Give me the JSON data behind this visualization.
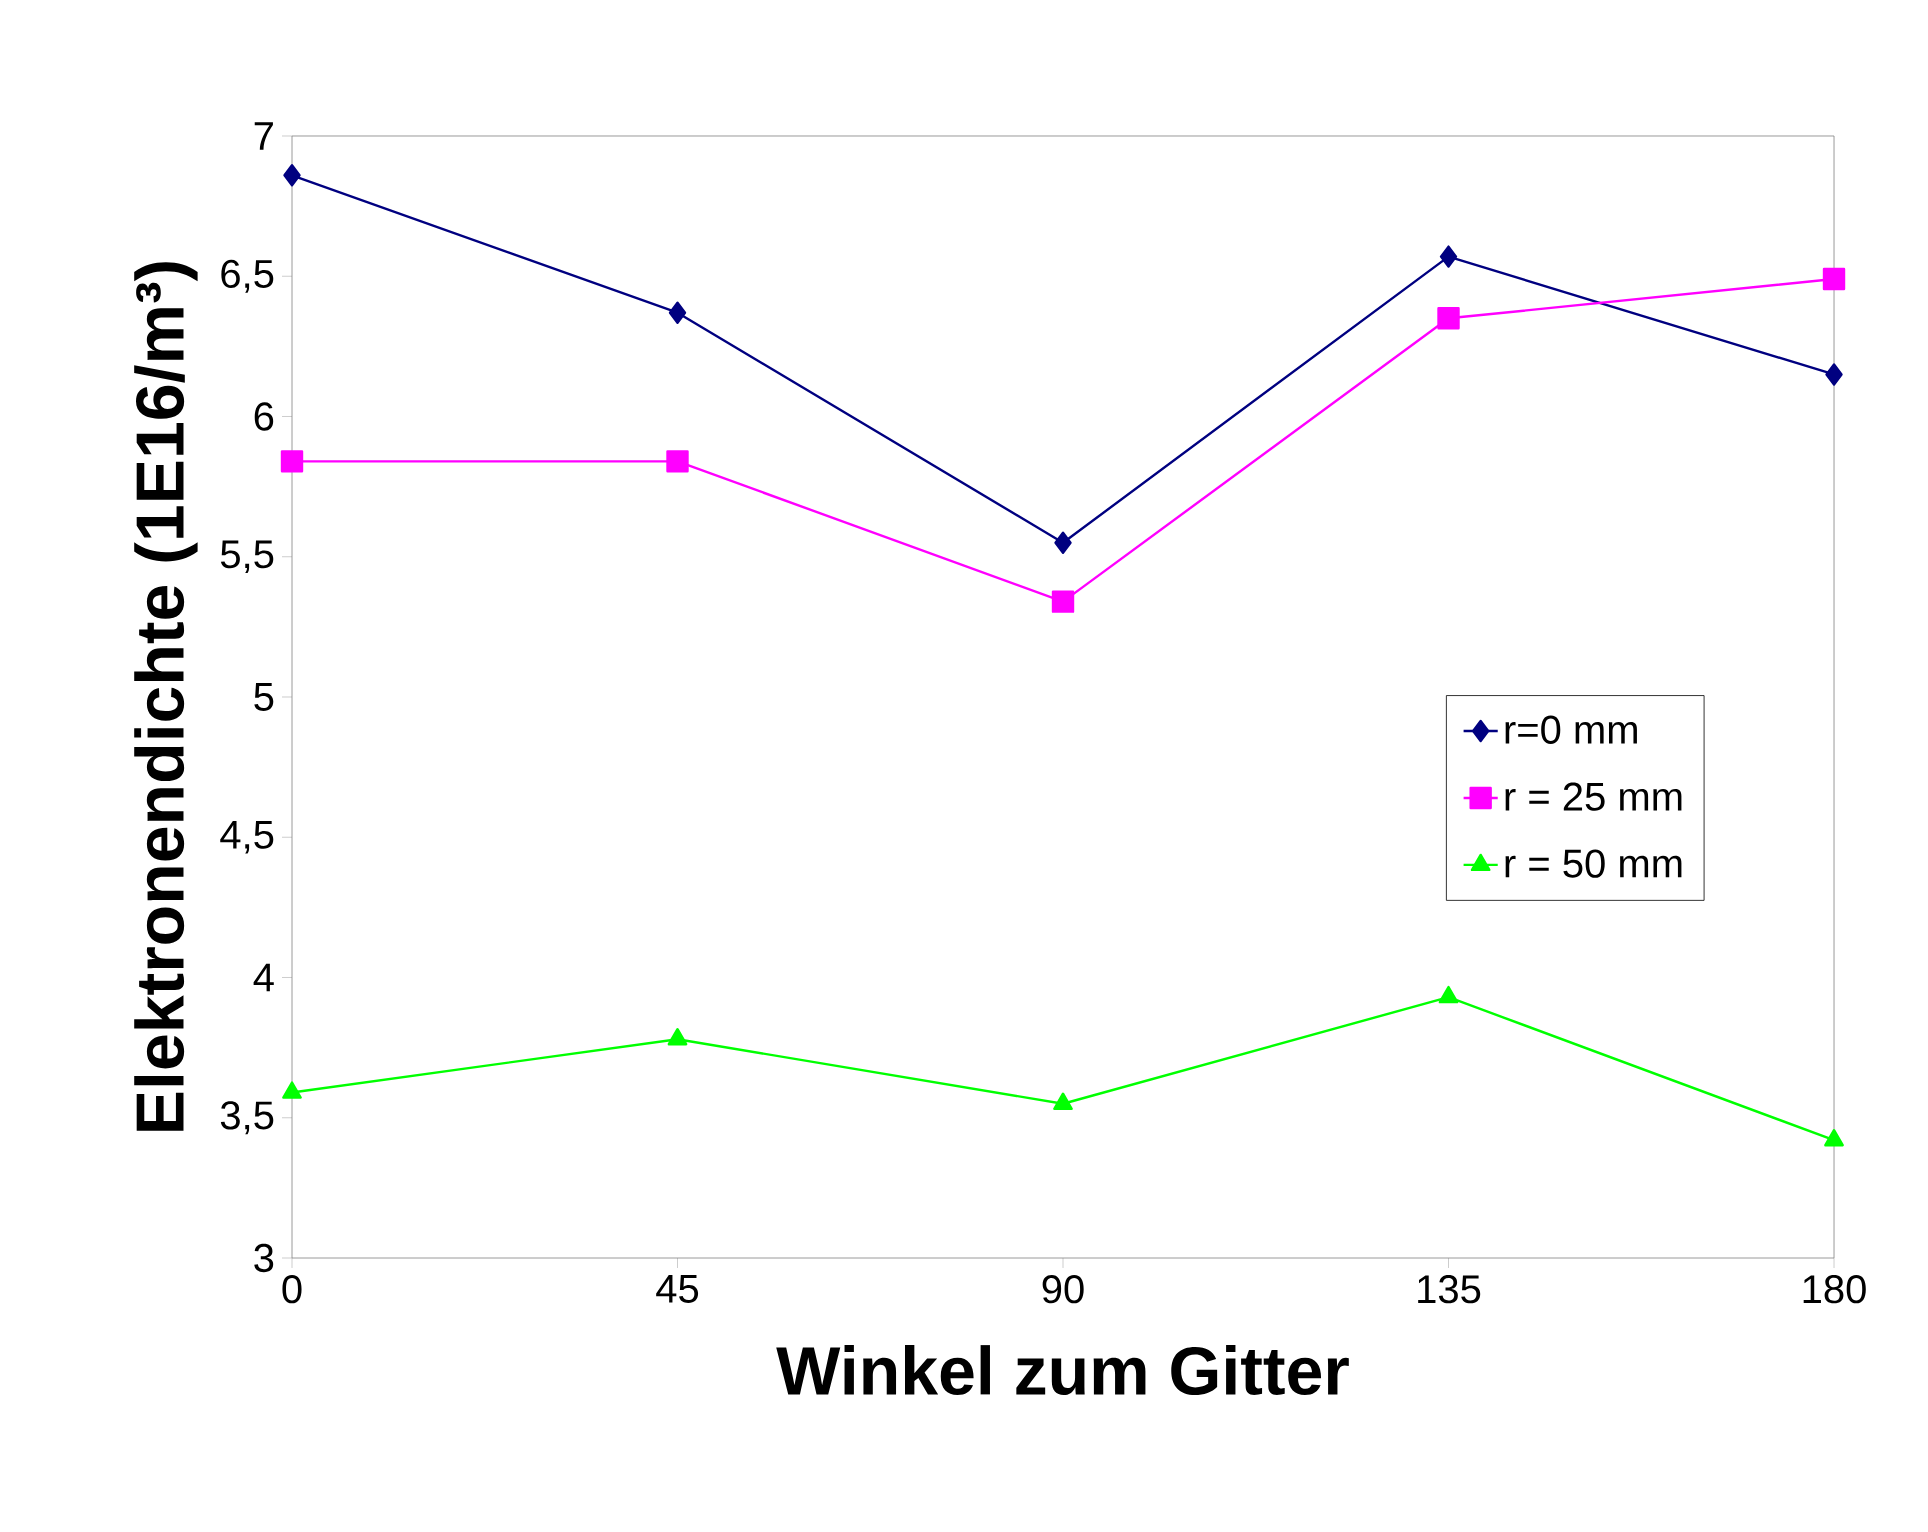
{
  "chart_data": {
    "type": "line",
    "xlabel": "Winkel zum Gitter",
    "ylabel": "Elektronendichte (1E16/m³)",
    "x": [
      0,
      45,
      90,
      135,
      180
    ],
    "series": [
      {
        "name": "r=0 mm",
        "color": "#000080",
        "marker": "diamond",
        "values": [
          6.86,
          6.37,
          5.55,
          6.57,
          6.15
        ]
      },
      {
        "name": "r = 25 mm",
        "color": "#ff00ff",
        "marker": "square",
        "values": [
          5.84,
          5.84,
          5.34,
          6.35,
          6.49
        ]
      },
      {
        "name": "r = 50 mm",
        "color": "#00ff00",
        "marker": "triangle",
        "values": [
          3.59,
          3.78,
          3.55,
          3.93,
          3.42
        ]
      }
    ],
    "xlim": [
      0,
      180
    ],
    "xticks": [
      0,
      45,
      90,
      135,
      180
    ],
    "ylim": [
      3,
      7
    ],
    "yticks": [
      3,
      {
        "value": 3.5,
        "label": "3,5"
      },
      4,
      {
        "value": 4.5,
        "label": "4,5"
      },
      5,
      {
        "value": 5.5,
        "label": "5,5"
      },
      6,
      {
        "value": 6.5,
        "label": "6,5"
      },
      7
    ],
    "grid": false,
    "legend": "right",
    "line_style": "solid"
  }
}
